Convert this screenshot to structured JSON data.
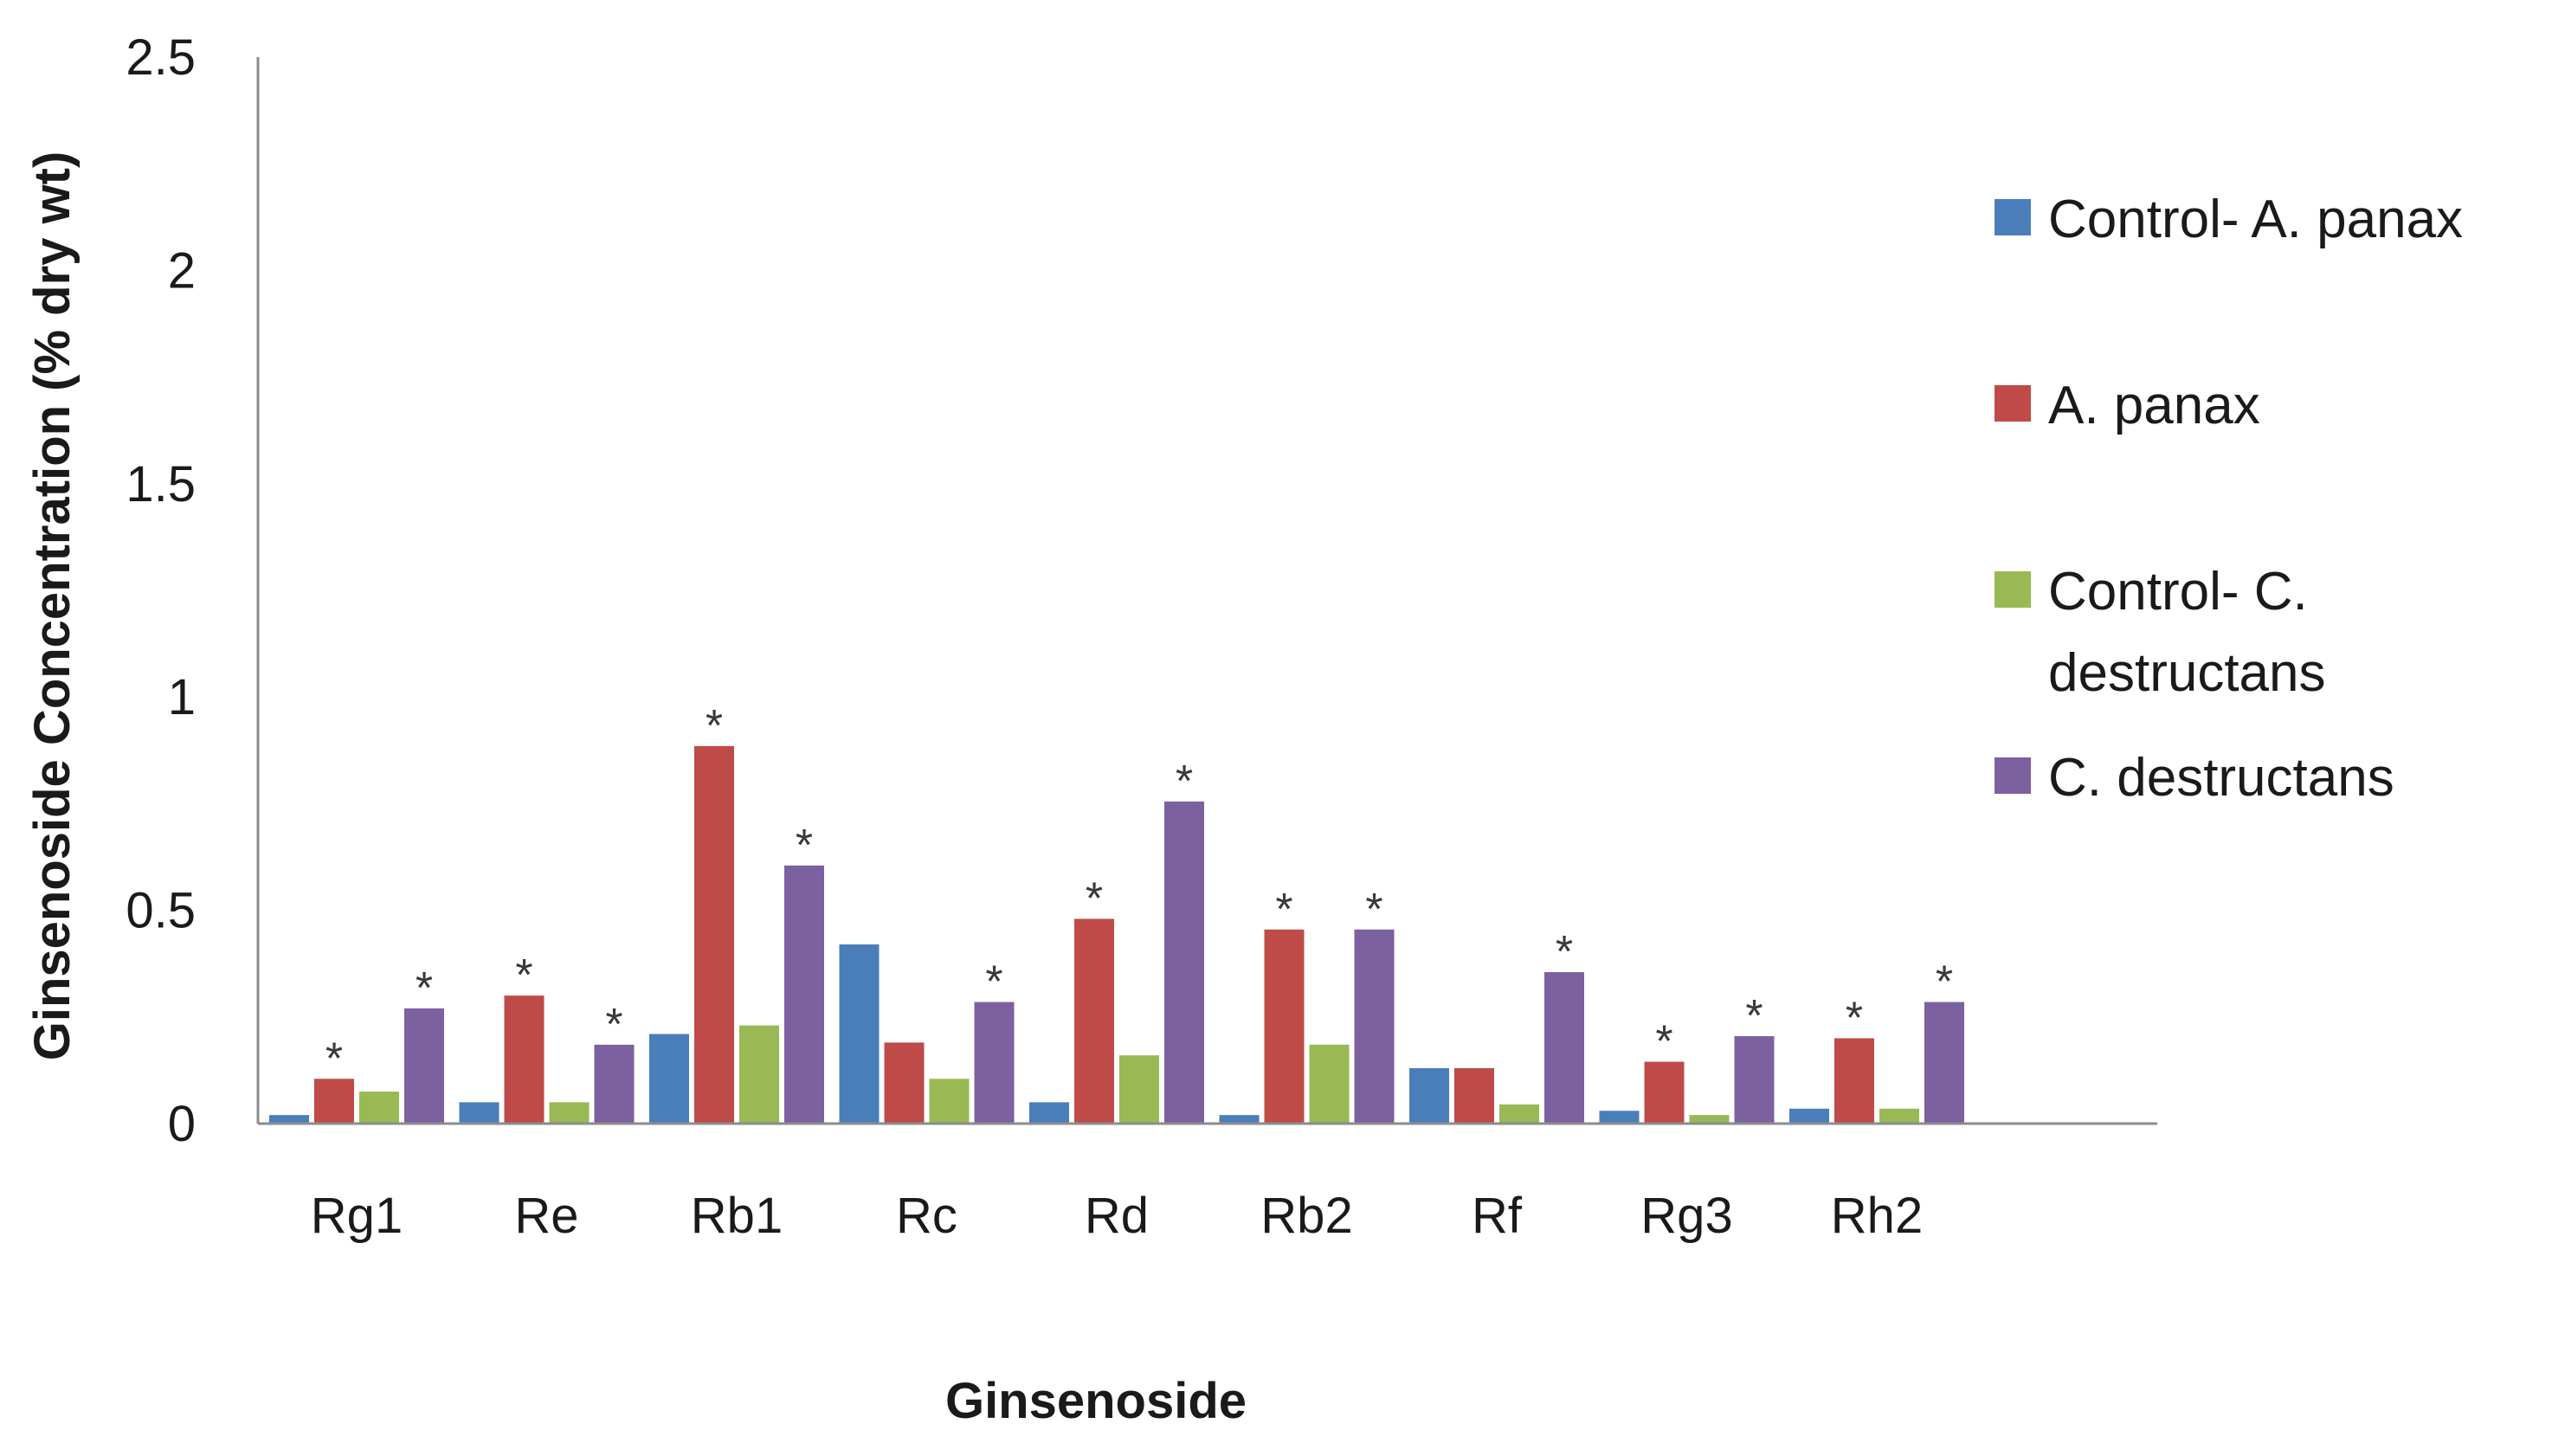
{
  "chart_data": {
    "type": "bar",
    "title": "",
    "xlabel": "Ginsenoside",
    "ylabel": "Ginsenoside Concentration (% dry wt)",
    "ylim": [
      0,
      2.5
    ],
    "yticks": [
      0,
      0.5,
      1,
      1.5,
      2,
      2.5
    ],
    "ytick_labels": [
      "0",
      "0.5",
      "1",
      "1.5",
      "2",
      "2.5"
    ],
    "categories": [
      "Rg1",
      "Re",
      "Rb1",
      "Rc",
      "Rd",
      "Rb2",
      "Rf",
      "Rg3",
      "Rh2"
    ],
    "legend_position": "right",
    "significance_marker": "*",
    "series": [
      {
        "name": "Control- A. panax",
        "legend_lines": [
          "Control- A. panax"
        ],
        "color": "#4a7ebb",
        "values": [
          0.02,
          0.05,
          0.21,
          0.42,
          0.05,
          0.02,
          0.13,
          0.03,
          0.035
        ],
        "significant": [
          false,
          false,
          false,
          false,
          false,
          false,
          false,
          false,
          false
        ]
      },
      {
        "name": "A. panax",
        "legend_lines": [
          "A. panax"
        ],
        "color": "#be4b48",
        "values": [
          0.105,
          0.3,
          0.885,
          0.19,
          0.48,
          0.455,
          0.13,
          0.145,
          0.2
        ],
        "significant": [
          true,
          true,
          true,
          false,
          true,
          true,
          false,
          true,
          true
        ]
      },
      {
        "name": "Control- C. destructans",
        "legend_lines": [
          "Control- C.",
          "destructans"
        ],
        "color": "#98b954",
        "values": [
          0.075,
          0.05,
          0.23,
          0.105,
          0.16,
          0.185,
          0.045,
          0.02,
          0.035
        ],
        "significant": [
          false,
          false,
          false,
          false,
          false,
          false,
          false,
          false,
          false
        ]
      },
      {
        "name": "C. destructans",
        "legend_lines": [
          "C. destructans"
        ],
        "color": "#7d60a0",
        "values": [
          0.27,
          0.185,
          0.605,
          0.285,
          0.755,
          0.455,
          0.355,
          0.205,
          0.285
        ],
        "significant": [
          true,
          true,
          true,
          true,
          true,
          true,
          true,
          true,
          true
        ]
      }
    ]
  }
}
